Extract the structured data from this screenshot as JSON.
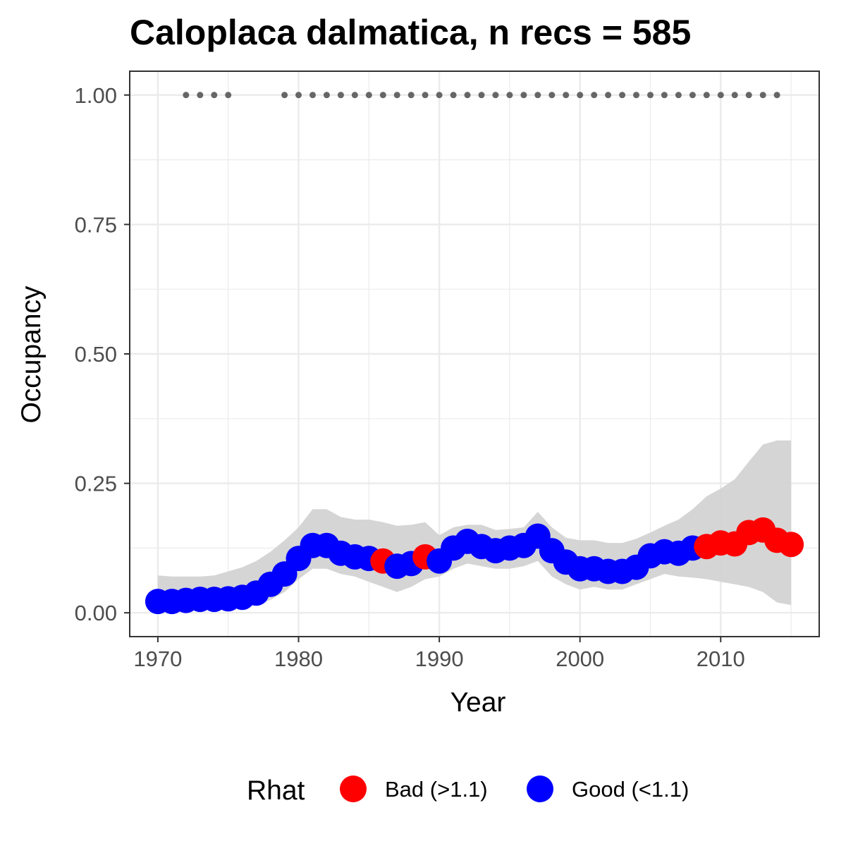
{
  "chart_data": {
    "type": "scatter",
    "title": "Caloplaca dalmatica, n recs = 585",
    "xlabel": "Year",
    "ylabel": "Occupancy",
    "xlim": [
      1968,
      2017
    ],
    "ylim": [
      -0.046,
      1.046
    ],
    "x_ticks": [
      1970,
      1980,
      1990,
      2000,
      2010
    ],
    "x_tick_labels": [
      "1970",
      "1980",
      "1990",
      "2000",
      "2010"
    ],
    "y_ticks": [
      0,
      0.25,
      0.5,
      0.75,
      1
    ],
    "y_tick_labels": [
      "0.00",
      "0.25",
      "0.50",
      "0.75",
      "1.00"
    ],
    "grid": true,
    "theme": "bw",
    "legend": {
      "title": "Rhat",
      "placement": "bottom",
      "entries": [
        {
          "label": "Bad (>1.1)",
          "color": "#ff0000"
        },
        {
          "label": "Good (<1.1)",
          "color": "#0000ff"
        }
      ]
    },
    "colors": {
      "bad": "#ff0000",
      "good": "#0000ff",
      "ribbon": "#d3d3d3",
      "record_dots": "#666666"
    },
    "series": [
      {
        "key": "occupancy",
        "x": [
          1970,
          1971,
          1972,
          1973,
          1974,
          1975,
          1976,
          1977,
          1978,
          1979,
          1980,
          1981,
          1982,
          1983,
          1984,
          1985,
          1986,
          1987,
          1988,
          1989,
          1990,
          1991,
          1992,
          1993,
          1994,
          1995,
          1996,
          1997,
          1998,
          1999,
          2000,
          2001,
          2002,
          2003,
          2004,
          2005,
          2006,
          2007,
          2008,
          2009,
          2010,
          2011,
          2012,
          2013,
          2014,
          2015
        ],
        "y": [
          0.022,
          0.022,
          0.024,
          0.026,
          0.026,
          0.027,
          0.03,
          0.038,
          0.055,
          0.075,
          0.105,
          0.13,
          0.13,
          0.115,
          0.108,
          0.105,
          0.1,
          0.09,
          0.095,
          0.108,
          0.1,
          0.125,
          0.138,
          0.128,
          0.12,
          0.125,
          0.13,
          0.148,
          0.12,
          0.098,
          0.085,
          0.085,
          0.08,
          0.08,
          0.088,
          0.11,
          0.118,
          0.115,
          0.125,
          0.128,
          0.135,
          0.133,
          0.155,
          0.16,
          0.14,
          0.132
        ],
        "rhat": [
          "good",
          "good",
          "good",
          "good",
          "good",
          "good",
          "good",
          "good",
          "good",
          "good",
          "good",
          "good",
          "good",
          "good",
          "good",
          "good",
          "bad",
          "good",
          "good",
          "bad",
          "good",
          "good",
          "good",
          "good",
          "good",
          "good",
          "good",
          "good",
          "good",
          "good",
          "good",
          "good",
          "good",
          "good",
          "good",
          "good",
          "good",
          "good",
          "good",
          "bad",
          "bad",
          "bad",
          "bad",
          "bad",
          "bad",
          "bad"
        ]
      },
      {
        "key": "ci_ribbon",
        "x": [
          1970,
          1971,
          1972,
          1973,
          1974,
          1975,
          1976,
          1977,
          1978,
          1979,
          1980,
          1981,
          1982,
          1983,
          1984,
          1985,
          1986,
          1987,
          1988,
          1989,
          1990,
          1991,
          1992,
          1993,
          1994,
          1995,
          1996,
          1997,
          1998,
          1999,
          2000,
          2001,
          2002,
          2003,
          2004,
          2005,
          2006,
          2007,
          2008,
          2009,
          2010,
          2011,
          2012,
          2013,
          2014,
          2015
        ],
        "lower": [
          0.005,
          0.005,
          0.006,
          0.007,
          0.007,
          0.008,
          0.01,
          0.015,
          0.025,
          0.04,
          0.065,
          0.085,
          0.085,
          0.075,
          0.07,
          0.06,
          0.05,
          0.04,
          0.05,
          0.065,
          0.07,
          0.085,
          0.095,
          0.09,
          0.085,
          0.085,
          0.09,
          0.1,
          0.07,
          0.055,
          0.045,
          0.05,
          0.045,
          0.045,
          0.055,
          0.065,
          0.075,
          0.07,
          0.068,
          0.065,
          0.06,
          0.055,
          0.05,
          0.04,
          0.02,
          0.015
        ],
        "upper": [
          0.072,
          0.07,
          0.07,
          0.07,
          0.072,
          0.08,
          0.088,
          0.1,
          0.118,
          0.14,
          0.165,
          0.2,
          0.2,
          0.185,
          0.18,
          0.18,
          0.175,
          0.168,
          0.17,
          0.175,
          0.15,
          0.165,
          0.17,
          0.17,
          0.16,
          0.162,
          0.165,
          0.195,
          0.165,
          0.145,
          0.14,
          0.14,
          0.135,
          0.135,
          0.143,
          0.155,
          0.168,
          0.18,
          0.2,
          0.225,
          0.24,
          0.258,
          0.292,
          0.325,
          0.333,
          0.333
        ]
      },
      {
        "key": "record_years",
        "x": [
          1972,
          1973,
          1974,
          1975,
          1979,
          1980,
          1981,
          1982,
          1983,
          1984,
          1985,
          1986,
          1987,
          1988,
          1989,
          1990,
          1991,
          1992,
          1993,
          1994,
          1995,
          1996,
          1997,
          1998,
          1999,
          2000,
          2001,
          2002,
          2003,
          2004,
          2005,
          2006,
          2007,
          2008,
          2009,
          2010,
          2011,
          2012,
          2013,
          2014
        ],
        "y": 1.0
      }
    ]
  }
}
